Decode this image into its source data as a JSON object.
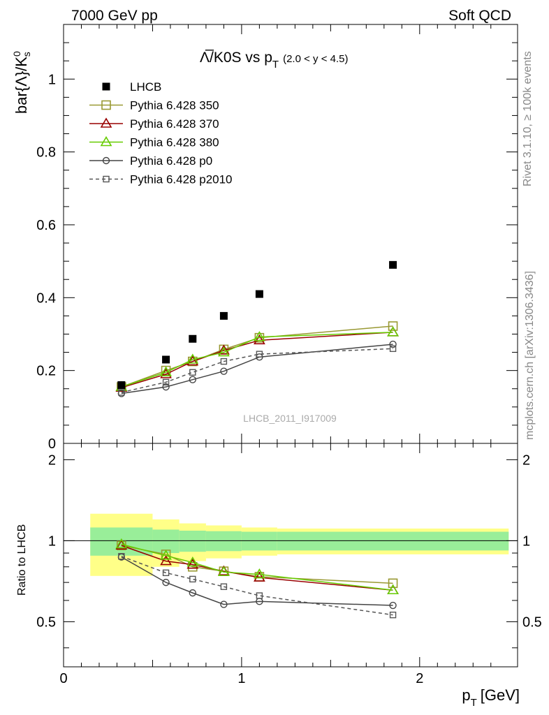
{
  "header": {
    "left": "7000 GeV pp",
    "right": "Soft QCD"
  },
  "side": {
    "rivet": "Rivet 3.1.10, ≥ 100k events",
    "mcplots": "mcplots.cern.ch [arXiv:1306.3436]"
  },
  "chart_data": {
    "type": "scatter",
    "title_main": "Λ̅/K0S vs p",
    "title_sub": "T",
    "title_range": "(2.0 < y < 4.5)",
    "ylabel_main": "bar{Λ}/K",
    "ylabel_sup": "0",
    "ylabel_sub": "s",
    "xlabel_main": "p",
    "xlabel_sub": "T",
    "xlabel_unit": "[GeV]",
    "ratio_ylabel": "Ratio to LHCB",
    "watermark": "LHCB_2011_I917009",
    "xlim": [
      0,
      2.55
    ],
    "ylim": [
      0,
      1.15
    ],
    "ratio_ylim": [
      0.34,
      2.3
    ],
    "x_ticks": [
      "0",
      "1",
      "2"
    ],
    "y_ticks": [
      "0",
      "0.2",
      "0.4",
      "0.6",
      "0.8",
      "1"
    ],
    "ratio_y_ticks": [
      "0.5",
      "1",
      "2"
    ],
    "ratio_y_ticks_right": [
      "0.5",
      "1",
      "2"
    ],
    "bins": [
      0.15,
      0.5,
      0.65,
      0.8,
      1.0,
      1.2,
      2.5
    ],
    "x": [
      0.325,
      0.575,
      0.725,
      0.9,
      1.1,
      1.85
    ],
    "data": {
      "name": "LHCB",
      "values": [
        0.16,
        0.23,
        0.287,
        0.35,
        0.41,
        0.49
      ],
      "band_inner": [
        0.12,
        0.1,
        0.09,
        0.085,
        0.08,
        0.08
      ],
      "band_outer": [
        0.26,
        0.2,
        0.16,
        0.14,
        0.12,
        0.11
      ]
    },
    "series": [
      {
        "name": "Pythia 6.428 350",
        "color": "#999933",
        "marker": "square-open",
        "dashed": false,
        "values": [
          0.155,
          0.2,
          0.225,
          0.258,
          0.29,
          0.322
        ],
        "ratio": [
          0.96,
          0.89,
          0.8,
          0.77,
          0.735,
          0.695
        ]
      },
      {
        "name": "Pythia 6.428 370",
        "color": "#990000",
        "marker": "triangle-open",
        "dashed": false,
        "values": [
          0.153,
          0.19,
          0.225,
          0.255,
          0.283,
          0.305
        ],
        "ratio": [
          0.96,
          0.84,
          0.815,
          0.77,
          0.73,
          0.655
        ]
      },
      {
        "name": "Pythia 6.428 380",
        "color": "#66cc00",
        "marker": "triangle-open",
        "dashed": false,
        "values": [
          0.155,
          0.195,
          0.23,
          0.25,
          0.292,
          0.305
        ],
        "ratio": [
          0.97,
          0.88,
          0.83,
          0.765,
          0.75,
          0.655
        ]
      },
      {
        "name": "Pythia 6.428 p0",
        "color": "#444444",
        "marker": "circle-open",
        "dashed": false,
        "values": [
          0.137,
          0.155,
          0.175,
          0.198,
          0.237,
          0.272
        ],
        "ratio": [
          0.87,
          0.7,
          0.64,
          0.58,
          0.595,
          0.575
        ]
      },
      {
        "name": "Pythia 6.428 p2010",
        "color": "#555555",
        "marker": "square-open-small",
        "dashed": true,
        "values": [
          0.14,
          0.168,
          0.195,
          0.225,
          0.245,
          0.26
        ],
        "ratio": [
          0.875,
          0.76,
          0.72,
          0.675,
          0.625,
          0.53
        ]
      }
    ]
  }
}
